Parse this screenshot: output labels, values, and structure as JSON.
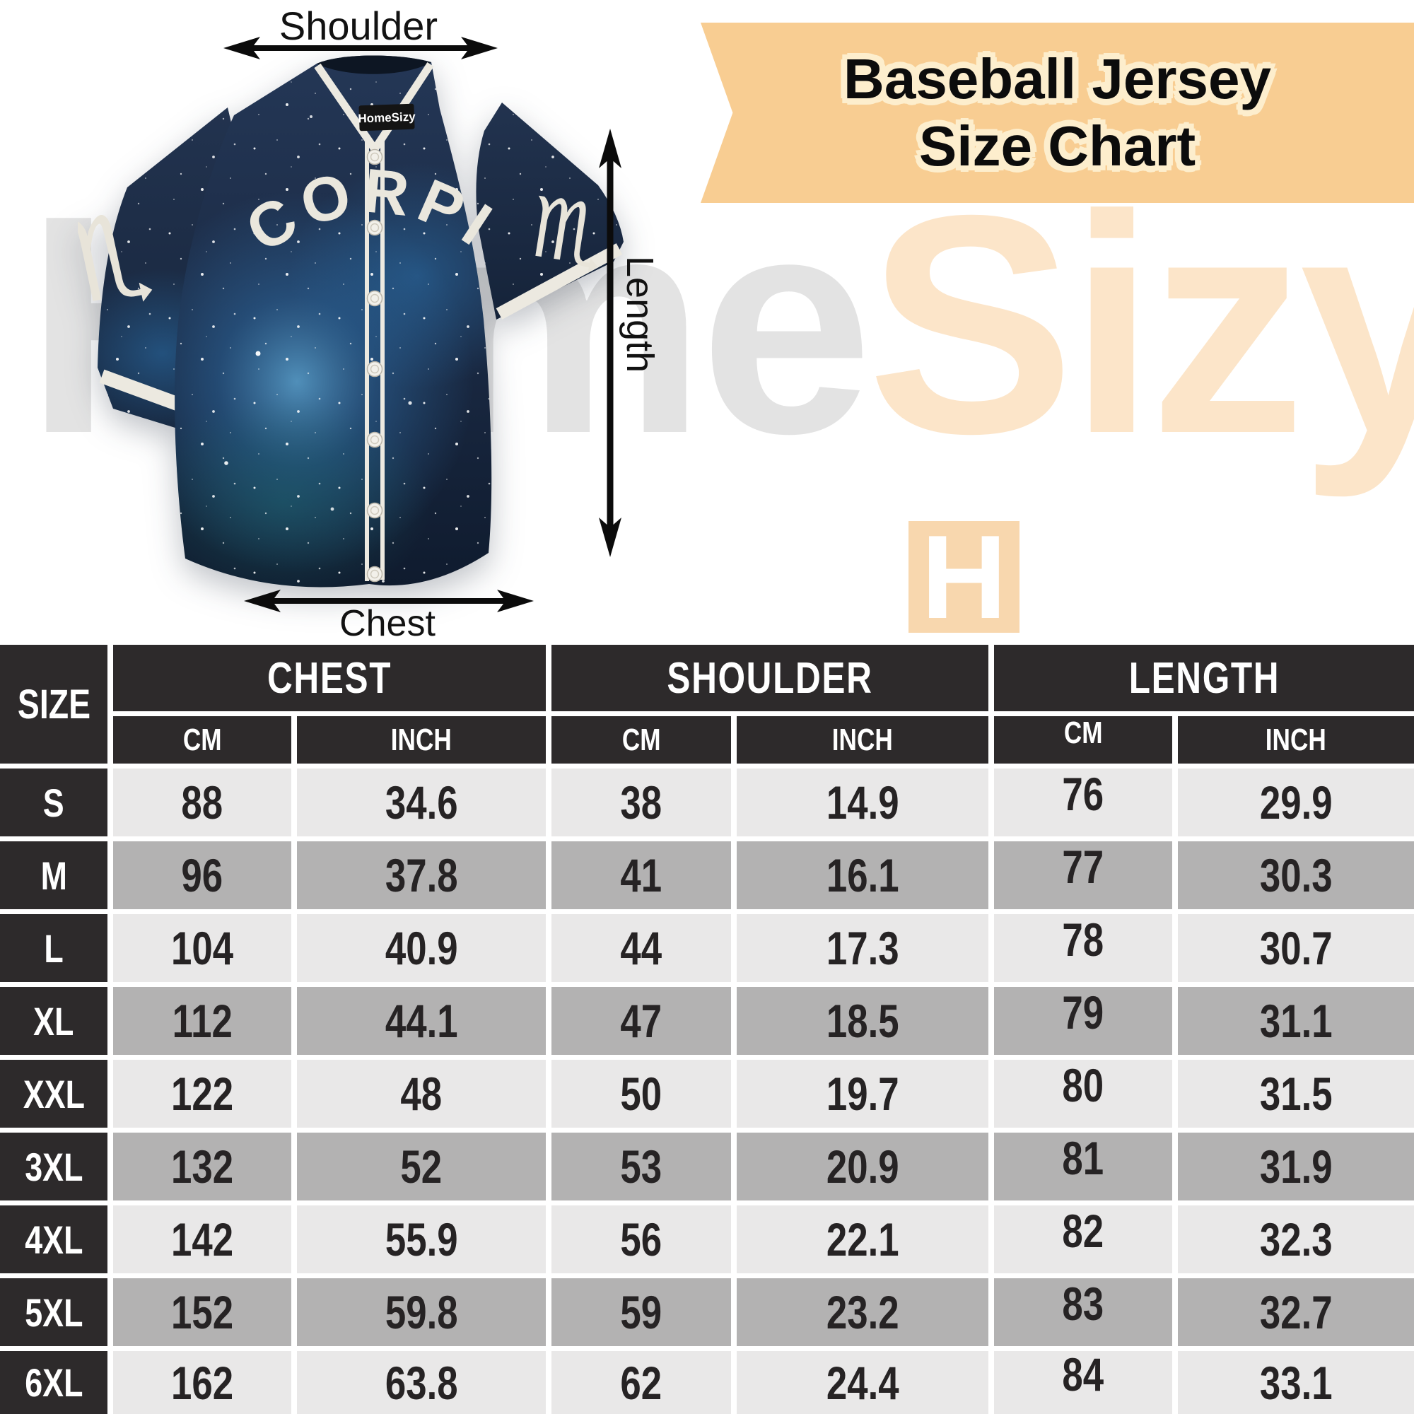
{
  "banner": {
    "line1": "Baseball Jersey",
    "line2": "Size Chart",
    "bg_color": "#f8cd92",
    "outline_color": "#fdeecd",
    "text_color": "#0c0c0c"
  },
  "watermark": {
    "part1": "Home",
    "part2": "Sizy",
    "part1_color": "#e3e3e3",
    "part2_color": "#fce5c9",
    "logo_letter": "H",
    "logo_bg": "#f8d7ae"
  },
  "annotations": {
    "shoulder": "Shoulder",
    "length": "Length",
    "chest": "Chest"
  },
  "jersey": {
    "team_text": "SCORPIO",
    "collar_label": "HomeSizy",
    "zodiac_symbol": "♏",
    "base_color": "#1b2a42",
    "trim_color": "#ece9e0"
  },
  "table": {
    "header_bg": "#2d2a2b",
    "row_light": "#e9e8e8",
    "row_dark": "#b3b2b2",
    "value_color": "#262324",
    "size_header": "SIZE",
    "groups": [
      {
        "label": "CHEST"
      },
      {
        "label": "SHOULDER"
      },
      {
        "label": "LENGTH"
      }
    ],
    "sub_headers": [
      "CM",
      "INCH",
      "CM",
      "INCH",
      "CM",
      "INCH"
    ],
    "rows": [
      {
        "size": "S",
        "values": [
          "88",
          "34.6",
          "38",
          "14.9",
          "76",
          "29.9"
        ]
      },
      {
        "size": "M",
        "values": [
          "96",
          "37.8",
          "41",
          "16.1",
          "77",
          "30.3"
        ]
      },
      {
        "size": "L",
        "values": [
          "104",
          "40.9",
          "44",
          "17.3",
          "78",
          "30.7"
        ]
      },
      {
        "size": "XL",
        "values": [
          "112",
          "44.1",
          "47",
          "18.5",
          "79",
          "31.1"
        ]
      },
      {
        "size": "XXL",
        "values": [
          "122",
          "48",
          "50",
          "19.7",
          "80",
          "31.5"
        ]
      },
      {
        "size": "3XL",
        "values": [
          "132",
          "52",
          "53",
          "20.9",
          "81",
          "31.9"
        ]
      },
      {
        "size": "4XL",
        "values": [
          "142",
          "55.9",
          "56",
          "22.1",
          "82",
          "32.3"
        ]
      },
      {
        "size": "5XL",
        "values": [
          "152",
          "59.8",
          "59",
          "23.2",
          "83",
          "32.7"
        ]
      },
      {
        "size": "6XL",
        "values": [
          "162",
          "63.8",
          "62",
          "24.4",
          "84",
          "33.1"
        ]
      }
    ]
  },
  "chart_data": {
    "type": "table",
    "title": "Baseball Jersey Size Chart",
    "columns": [
      "SIZE",
      "CHEST CM",
      "CHEST INCH",
      "SHOULDER CM",
      "SHOULDER INCH",
      "LENGTH CM",
      "LENGTH INCH"
    ],
    "rows": [
      [
        "S",
        88,
        34.6,
        38,
        14.9,
        76,
        29.9
      ],
      [
        "M",
        96,
        37.8,
        41,
        16.1,
        77,
        30.3
      ],
      [
        "L",
        104,
        40.9,
        44,
        17.3,
        78,
        30.7
      ],
      [
        "XL",
        112,
        44.1,
        47,
        18.5,
        79,
        31.1
      ],
      [
        "XXL",
        122,
        48,
        50,
        19.7,
        80,
        31.5
      ],
      [
        "3XL",
        132,
        52,
        53,
        20.9,
        81,
        31.9
      ],
      [
        "4XL",
        142,
        55.9,
        56,
        22.1,
        82,
        32.3
      ],
      [
        "5XL",
        152,
        59.8,
        59,
        23.2,
        83,
        32.7
      ],
      [
        "6XL",
        162,
        63.8,
        62,
        24.4,
        84,
        33.1
      ]
    ]
  }
}
